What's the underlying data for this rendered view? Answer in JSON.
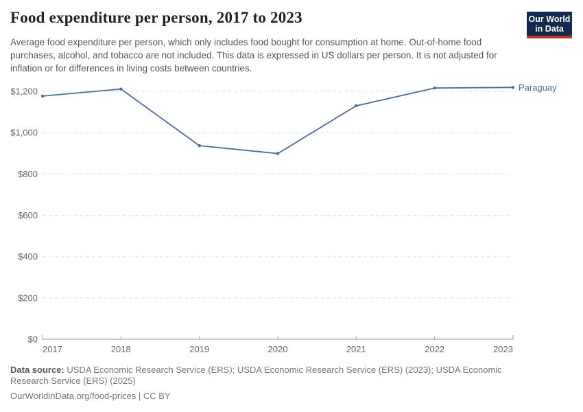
{
  "header": {
    "title": "Food expenditure per person, 2017 to 2023",
    "subtitle": "Average food expenditure per person, which only includes food bought for consumption at home. Out-of-home food purchases, alcohol, and tobacco are not included. This data is expressed in US dollars per person. It is not adjusted for inflation or for differences in living costs between countries.",
    "logo": {
      "line1": "Our World",
      "line2": "in Data"
    }
  },
  "chart_data": {
    "type": "line",
    "title": "Food expenditure per person, 2017 to 2023",
    "x": [
      2017,
      2018,
      2019,
      2020,
      2021,
      2022,
      2023
    ],
    "xtick_labels": [
      "2017",
      "2018",
      "2019",
      "2020",
      "2021",
      "2022",
      "2023"
    ],
    "series": [
      {
        "name": "Paraguay",
        "values": [
          1177,
          1211,
          937,
          899,
          1130,
          1216,
          1219
        ],
        "color": "#4C6A9C"
      }
    ],
    "xlabel": "",
    "ylabel": "",
    "ylim": [
      0,
      1200
    ],
    "ytick_interval": 200,
    "ytick_labels": [
      "$0",
      "$200",
      "$400",
      "$600",
      "$800",
      "$1,000",
      "$1,200"
    ],
    "unit": "US dollars per person",
    "grid": "horizontal-dashed",
    "legend_position": "end-of-line-label"
  },
  "footer": {
    "data_source_label": "Data source:",
    "data_source_text": "USDA Economic Research Service (ERS); USDA Economic Research Service (ERS) (2023); USDA Economic Research Service (ERS) (2025)",
    "note": "OurWorldinData.org/food-prices | CC BY"
  },
  "colors": {
    "accent_line": "#4C6A9C",
    "logo_bg": "#14294E",
    "logo_stripe": "#C0352C",
    "title_text": "#222222",
    "subtitle_text": "#555555",
    "axis_text": "#666666",
    "grid": "#E0E0E0",
    "axis_line": "#999999",
    "footer_text": "#777777",
    "footer_bold": "#555555"
  }
}
